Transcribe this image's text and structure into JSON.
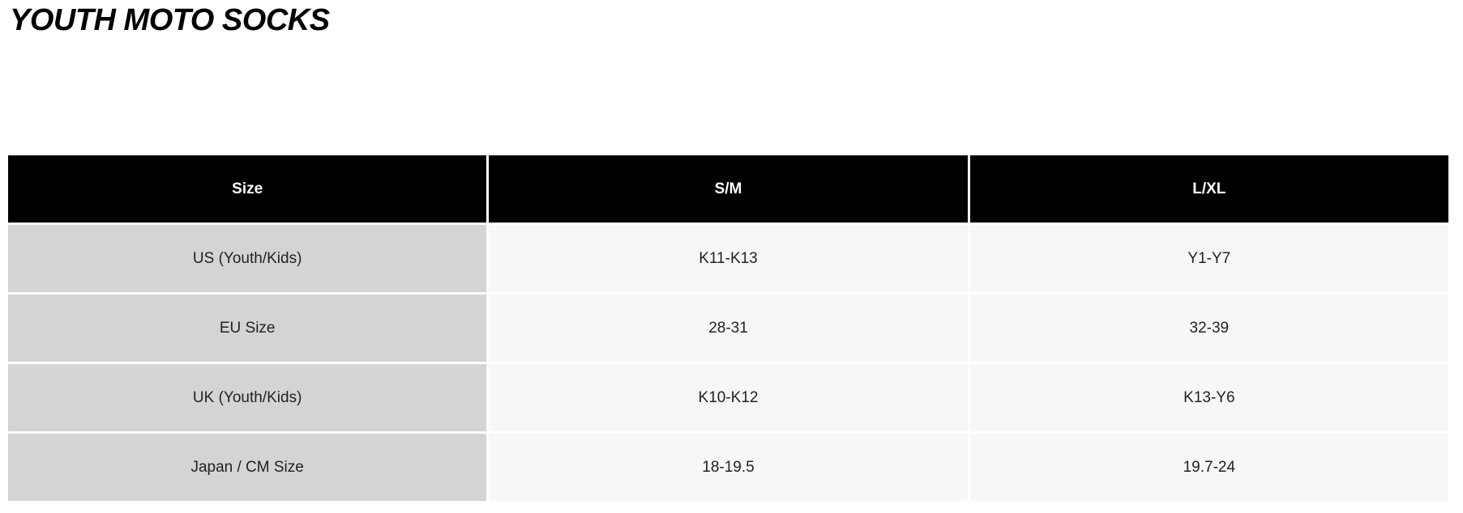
{
  "title": "YOUTH MOTO SOCKS",
  "table": {
    "headers": [
      "Size",
      "S/M",
      "L/XL"
    ],
    "rows": [
      [
        "US (Youth/Kids)",
        "K11-K13",
        "Y1-Y7"
      ],
      [
        "EU Size",
        "28-31",
        "32-39"
      ],
      [
        "UK (Youth/Kids)",
        "K10-K12",
        "K13-Y6"
      ],
      [
        "Japan / CM Size",
        "18-19.5",
        "19.7-24"
      ]
    ]
  },
  "colors": {
    "header_bg": "#000000",
    "label_bg": "#d4d4d4",
    "cell_bg": "#f7f7f7"
  }
}
